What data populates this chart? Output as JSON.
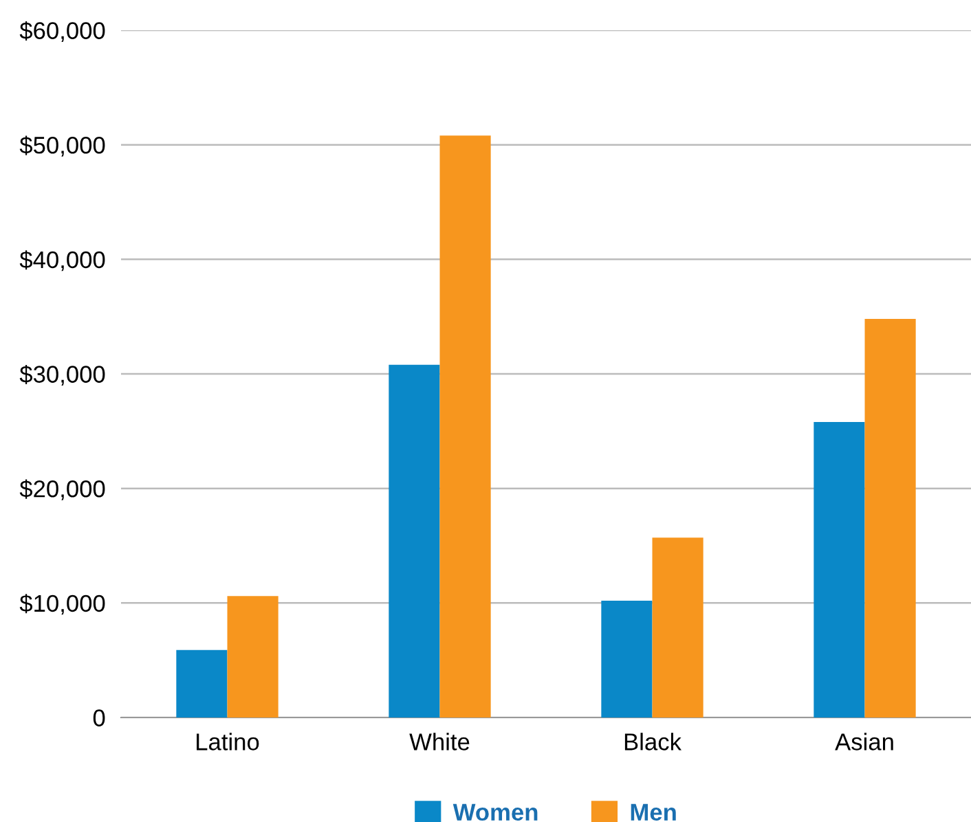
{
  "chart_data": {
    "type": "bar",
    "categories": [
      "Latino",
      "White",
      "Black",
      "Asian"
    ],
    "series": [
      {
        "name": "Women",
        "color": "#0a88c8",
        "values": [
          5900,
          30800,
          10200,
          25800
        ]
      },
      {
        "name": "Men",
        "color": "#f7961e",
        "values": [
          10600,
          50800,
          15700,
          34800
        ]
      }
    ],
    "ylim": [
      0,
      60000
    ],
    "yticks": [
      {
        "value": 0,
        "label": "0"
      },
      {
        "value": 10000,
        "label": "$10,000"
      },
      {
        "value": 20000,
        "label": "$20,000"
      },
      {
        "value": 30000,
        "label": "$30,000"
      },
      {
        "value": 40000,
        "label": "$40,000"
      },
      {
        "value": 50000,
        "label": "$50,000"
      },
      {
        "value": 60000,
        "label": "$60,000"
      }
    ],
    "grid": "y",
    "legend": "bottom"
  }
}
